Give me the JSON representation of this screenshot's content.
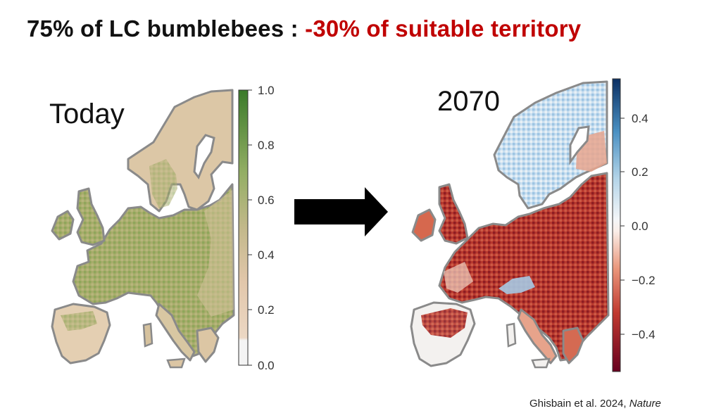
{
  "title": {
    "prefix": "75% of LC bumblebees : ",
    "highlight": "-30% of suitable territory",
    "highlight_color": "#c00000"
  },
  "left_panel": {
    "label": "Today",
    "colorbar_ticks": [
      "1.0",
      "0.8",
      "0.6",
      "0.4",
      "0.2",
      "0.0"
    ],
    "colors": [
      "#f2f2f2",
      "#e6cdb4",
      "#8fa85a",
      "#3b7a2a"
    ]
  },
  "arrow": {
    "icon": "right-arrow-icon",
    "color": "#000000"
  },
  "right_panel": {
    "label": "2070",
    "colorbar_ticks": [
      "0.4",
      "0.2",
      "0.0",
      "−0.2",
      "−0.4"
    ],
    "colors": [
      "#67001f",
      "#d6604d",
      "#f7f7f7",
      "#92c5de",
      "#053061"
    ]
  },
  "citation": {
    "text": "Ghisbain et al. 2024, ",
    "journal": "Nature"
  }
}
